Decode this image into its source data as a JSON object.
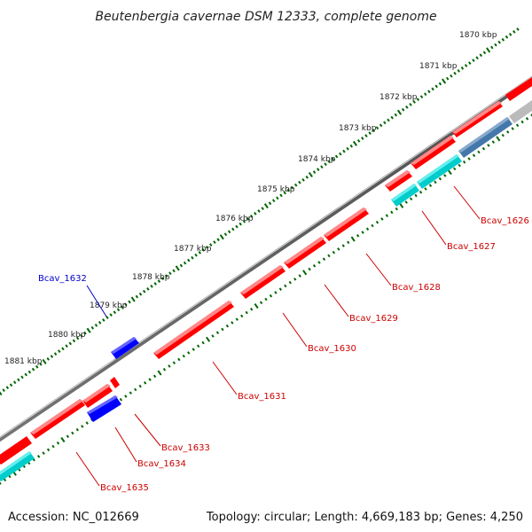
{
  "title": "Beutenbergia cavernae DSM 12333, complete genome",
  "footer": {
    "accession": "Accession: NC_012669",
    "info": "Topology: circular; Length: 4,669,183 bp; Genes: 4,250"
  },
  "scale_labels": [
    "1870 kbp",
    "1871 kbp",
    "1872 kbp",
    "1873 kbp",
    "1874 kbp",
    "1875 kbp",
    "1876 kbp",
    "1877 kbp",
    "1878 kbp",
    "1879 kbp",
    "1880 kbp",
    "1881 kbp"
  ],
  "gene_labels": [
    {
      "text": "Bcav_1626",
      "color": "#cc0000"
    },
    {
      "text": "Bcav_1627",
      "color": "#cc0000"
    },
    {
      "text": "Bcav_1628",
      "color": "#cc0000"
    },
    {
      "text": "Bcav_1629",
      "color": "#cc0000"
    },
    {
      "text": "Bcav_1630",
      "color": "#cc0000"
    },
    {
      "text": "Bcav_1631",
      "color": "#cc0000"
    },
    {
      "text": "Bcav_1632",
      "color": "#0000cc"
    },
    {
      "text": "Bcav_1633",
      "color": "#cc0000"
    },
    {
      "text": "Bcav_1634",
      "color": "#cc0000"
    },
    {
      "text": "Bcav_1635",
      "color": "#cc0000"
    }
  ],
  "colors": {
    "cds_forward": "#ff0000",
    "cds_reverse_blue": "#0000ff",
    "cyan_feature": "#00cccc",
    "steel_feature": "#4477aa",
    "grey_feature": "#bbbbbb",
    "backbone": "#777777",
    "tick_green": "#006600"
  }
}
